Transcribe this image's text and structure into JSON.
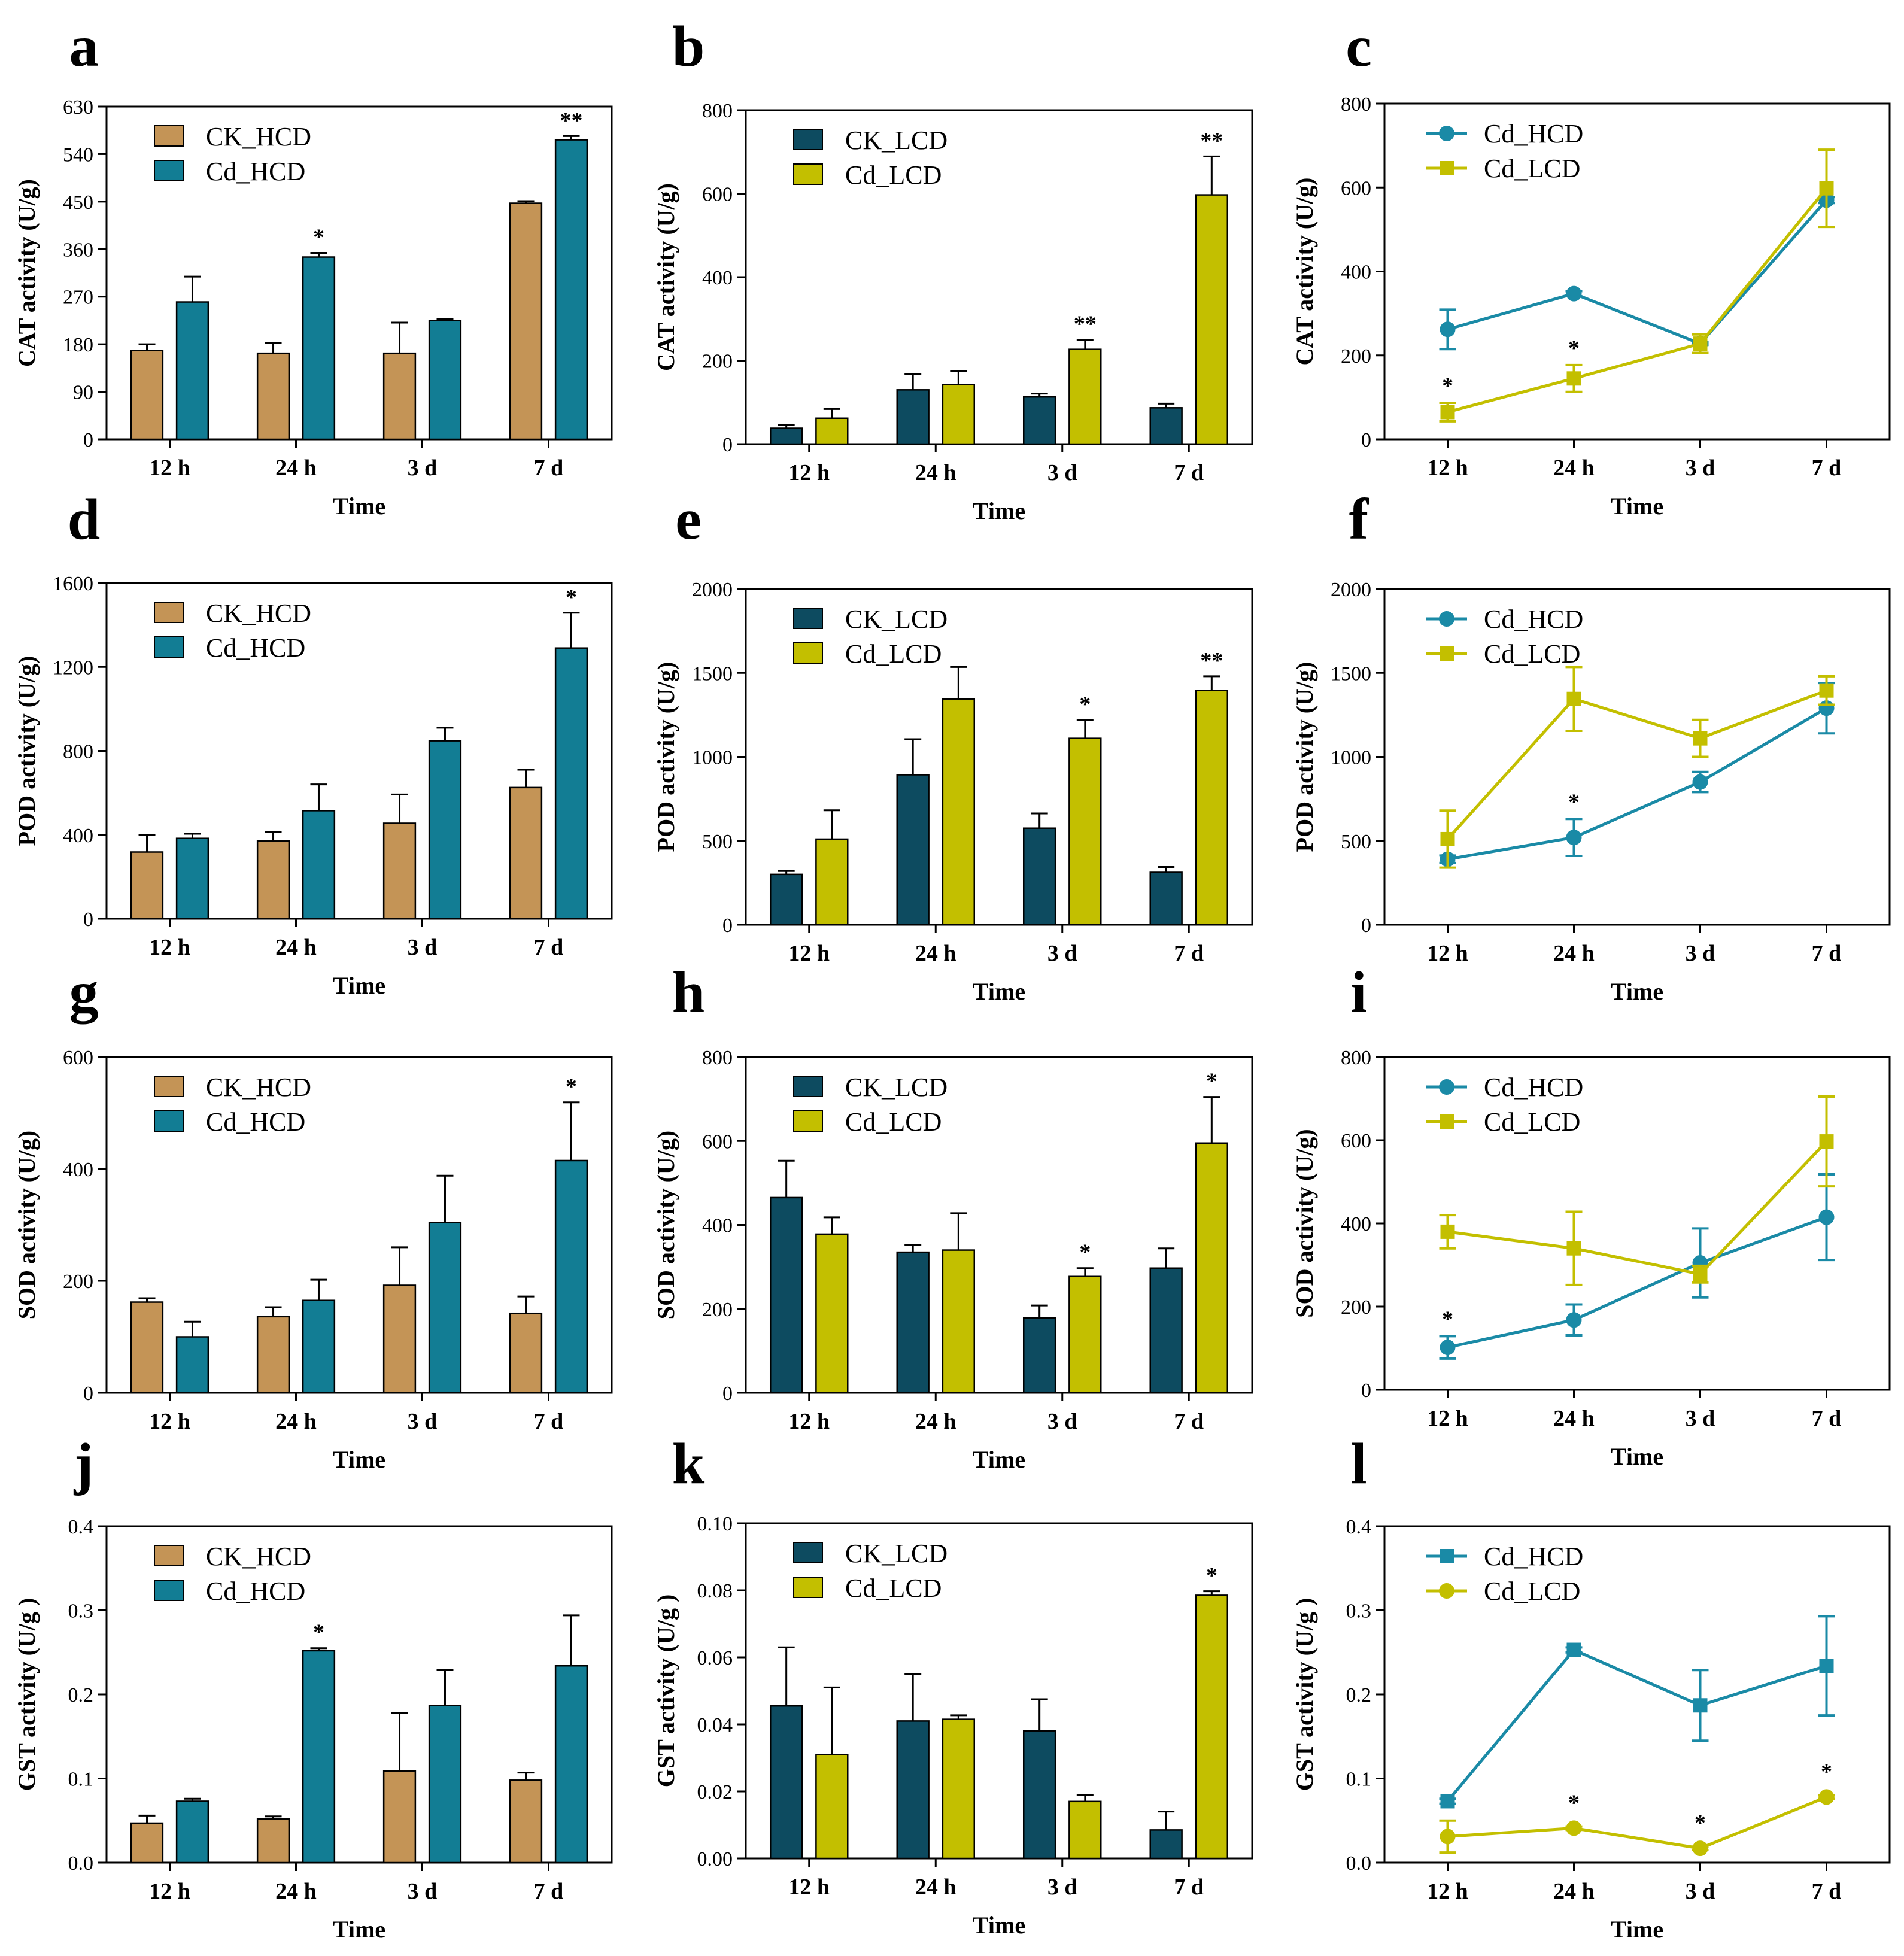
{
  "chart_data": [
    {
      "panel": "a",
      "type": "bar",
      "categories": [
        "12 h",
        "24 h",
        "3 d",
        "7 d"
      ],
      "xlabel": "Time",
      "ylabel": "CAT activity  (U/g)",
      "ylim": [
        0,
        630
      ],
      "yticks": [
        "0",
        "90",
        "180",
        "270",
        "360",
        "450",
        "540",
        "630"
      ],
      "legend": "top-left",
      "series": [
        {
          "name": "CK_HCD",
          "color": "#c49456",
          "values": [
            168,
            163,
            163,
            447
          ],
          "errors": [
            12,
            20,
            58,
            4
          ]
        },
        {
          "name": "Cd_HCD",
          "color": "#127d94",
          "values": [
            260,
            345,
            225,
            567
          ],
          "errors": [
            48,
            8,
            3,
            7
          ]
        }
      ],
      "annotations": [
        {
          "series": 1,
          "index": 1,
          "text": "*"
        },
        {
          "series": 1,
          "index": 3,
          "text": "**"
        }
      ]
    },
    {
      "panel": "b",
      "type": "bar",
      "categories": [
        "12 h",
        "24 h",
        "3 d",
        "7 d"
      ],
      "xlabel": "Time",
      "ylabel": "CAT activity  (U/g)",
      "ylim": [
        0,
        800
      ],
      "yticks": [
        "0",
        "200",
        "400",
        "600",
        "800"
      ],
      "legend": "top-left",
      "series": [
        {
          "name": "CK_LCD",
          "color": "#0d4b60",
          "values": [
            38,
            130,
            113,
            87
          ],
          "errors": [
            8,
            38,
            8,
            10
          ]
        },
        {
          "name": "Cd_LCD",
          "color": "#c3bf00",
          "values": [
            62,
            143,
            227,
            597
          ],
          "errors": [
            22,
            32,
            23,
            92
          ]
        }
      ],
      "annotations": [
        {
          "series": 1,
          "index": 2,
          "text": "**"
        },
        {
          "series": 1,
          "index": 3,
          "text": "**"
        }
      ]
    },
    {
      "panel": "c",
      "type": "line",
      "categories": [
        "12 h",
        "24 h",
        "3 d",
        "7 d"
      ],
      "xlabel": "Time",
      "ylabel": "CAT activity  (U/g)",
      "ylim": [
        0,
        800
      ],
      "yticks": [
        "0",
        "200",
        "400",
        "600",
        "800"
      ],
      "legend": "top-left",
      "series": [
        {
          "name": "Cd_HCD",
          "color": "#1a8aa6",
          "marker": "circle",
          "values": [
            262,
            347,
            228,
            570
          ],
          "errors": [
            47,
            6,
            3,
            7
          ]
        },
        {
          "name": "Cd_LCD",
          "color": "#c3bf00",
          "marker": "square",
          "values": [
            65,
            145,
            228,
            598
          ],
          "errors": [
            22,
            32,
            22,
            92
          ]
        }
      ],
      "annotations": [
        {
          "series": 1,
          "index": 0,
          "text": "*"
        },
        {
          "series": 1,
          "index": 1,
          "text": "*"
        }
      ]
    },
    {
      "panel": "d",
      "type": "bar",
      "categories": [
        "12 h",
        "24 h",
        "3 d",
        "7 d"
      ],
      "xlabel": "Time",
      "ylabel": "POD activity  (U/g)",
      "ylim": [
        0,
        1600
      ],
      "yticks": [
        "0",
        "400",
        "800",
        "1200",
        "1600"
      ],
      "legend": "top-left",
      "series": [
        {
          "name": "CK_HCD",
          "color": "#c49456",
          "values": [
            318,
            370,
            455,
            625
          ],
          "errors": [
            80,
            45,
            137,
            85
          ]
        },
        {
          "name": "Cd_HCD",
          "color": "#127d94",
          "values": [
            383,
            515,
            848,
            1290
          ],
          "errors": [
            22,
            125,
            62,
            168
          ]
        }
      ],
      "annotations": [
        {
          "series": 1,
          "index": 3,
          "text": "*"
        }
      ]
    },
    {
      "panel": "e",
      "type": "bar",
      "categories": [
        "12 h",
        "24 h",
        "3 d",
        "7 d"
      ],
      "xlabel": "Time",
      "ylabel": "POD activity  (U/g)",
      "ylim": [
        0,
        2000
      ],
      "yticks": [
        "0",
        "500",
        "1000",
        "1500",
        "2000"
      ],
      "legend": "top-left",
      "series": [
        {
          "name": "CK_LCD",
          "color": "#0d4b60",
          "values": [
            300,
            893,
            575,
            312
          ],
          "errors": [
            20,
            212,
            88,
            32
          ]
        },
        {
          "name": "Cd_LCD",
          "color": "#c3bf00",
          "values": [
            510,
            1345,
            1110,
            1395
          ],
          "errors": [
            172,
            190,
            110,
            85
          ]
        }
      ],
      "annotations": [
        {
          "series": 1,
          "index": 2,
          "text": "*"
        },
        {
          "series": 1,
          "index": 3,
          "text": "**"
        }
      ]
    },
    {
      "panel": "f",
      "type": "line",
      "categories": [
        "12 h",
        "24 h",
        "3 d",
        "7 d"
      ],
      "xlabel": "Time",
      "ylabel": "POD activity  (U/g)",
      "ylim": [
        0,
        2000
      ],
      "yticks": [
        "0",
        "500",
        "1000",
        "1500",
        "2000"
      ],
      "legend": "top-left",
      "series": [
        {
          "name": "Cd_HCD",
          "color": "#1a8aa6",
          "marker": "circle",
          "values": [
            390,
            520,
            850,
            1290
          ],
          "errors": [
            22,
            110,
            60,
            150
          ]
        },
        {
          "name": "Cd_LCD",
          "color": "#c3bf00",
          "marker": "square",
          "values": [
            510,
            1345,
            1110,
            1395
          ],
          "errors": [
            170,
            190,
            110,
            85
          ]
        }
      ],
      "annotations": [
        {
          "series": 0,
          "index": 1,
          "text": "*"
        }
      ]
    },
    {
      "panel": "g",
      "type": "bar",
      "categories": [
        "12 h",
        "24 h",
        "3 d",
        "7 d"
      ],
      "xlabel": "Time",
      "ylabel": "SOD activity  (U/g)",
      "ylim": [
        0,
        600
      ],
      "yticks": [
        "0",
        "200",
        "400",
        "600"
      ],
      "legend": "top-left",
      "series": [
        {
          "name": "CK_HCD",
          "color": "#c49456",
          "values": [
            162,
            136,
            192,
            142
          ],
          "errors": [
            7,
            17,
            68,
            30
          ]
        },
        {
          "name": "Cd_HCD",
          "color": "#127d94",
          "values": [
            100,
            165,
            304,
            415
          ],
          "errors": [
            27,
            37,
            84,
            104
          ]
        }
      ],
      "annotations": [
        {
          "series": 1,
          "index": 3,
          "text": "*"
        }
      ]
    },
    {
      "panel": "h",
      "type": "bar",
      "categories": [
        "12 h",
        "24 h",
        "3 d",
        "7 d"
      ],
      "xlabel": "Time",
      "ylabel": "SOD activity  (U/g)",
      "ylim": [
        0,
        800
      ],
      "yticks": [
        "0",
        "200",
        "400",
        "600",
        "800"
      ],
      "legend": "top-left",
      "series": [
        {
          "name": "CK_LCD",
          "color": "#0d4b60",
          "values": [
            465,
            335,
            178,
            297
          ],
          "errors": [
            88,
            17,
            30,
            47
          ]
        },
        {
          "name": "Cd_LCD",
          "color": "#c3bf00",
          "values": [
            378,
            340,
            277,
            595
          ],
          "errors": [
            40,
            88,
            20,
            110
          ]
        }
      ],
      "annotations": [
        {
          "series": 1,
          "index": 2,
          "text": "*"
        },
        {
          "series": 1,
          "index": 3,
          "text": "*"
        }
      ]
    },
    {
      "panel": "i",
      "type": "line",
      "categories": [
        "12 h",
        "24 h",
        "3 d",
        "7 d"
      ],
      "xlabel": "Time",
      "ylabel": "SOD activity  (U/g)",
      "ylim": [
        0,
        800
      ],
      "yticks": [
        "0",
        "200",
        "400",
        "600",
        "800"
      ],
      "legend": "top-left",
      "series": [
        {
          "name": "Cd_HCD",
          "color": "#1a8aa6",
          "marker": "circle",
          "values": [
            102,
            168,
            305,
            415
          ],
          "errors": [
            27,
            37,
            83,
            103
          ]
        },
        {
          "name": "Cd_LCD",
          "color": "#c3bf00",
          "marker": "square",
          "values": [
            380,
            340,
            278,
            597
          ],
          "errors": [
            40,
            88,
            20,
            108
          ]
        }
      ],
      "annotations": [
        {
          "series": 0,
          "index": 0,
          "text": "*"
        }
      ]
    },
    {
      "panel": "j",
      "type": "bar",
      "categories": [
        "12 h",
        "24 h",
        "3 d",
        "7 d"
      ],
      "xlabel": "Time",
      "ylabel": "GST activity  (U/g )",
      "ylim": [
        0,
        0.4
      ],
      "yticks": [
        "0.0",
        "0.1",
        "0.2",
        "0.3",
        "0.4"
      ],
      "legend": "top-left",
      "series": [
        {
          "name": "CK_HCD",
          "color": "#c49456",
          "values": [
            0.047,
            0.052,
            0.109,
            0.098
          ],
          "errors": [
            0.009,
            0.003,
            0.069,
            0.009
          ]
        },
        {
          "name": "Cd_HCD",
          "color": "#127d94",
          "values": [
            0.073,
            0.252,
            0.187,
            0.234
          ],
          "errors": [
            0.003,
            0.003,
            0.042,
            0.06
          ]
        }
      ],
      "annotations": [
        {
          "series": 1,
          "index": 1,
          "text": "*"
        }
      ]
    },
    {
      "panel": "k",
      "type": "bar",
      "categories": [
        "12 h",
        "24 h",
        "3 d",
        "7 d"
      ],
      "xlabel": "Time",
      "ylabel": "GST activity (U/g )",
      "ylim": [
        0,
        0.1
      ],
      "yticks": [
        "0.00",
        "0.02",
        "0.04",
        "0.06",
        "0.08",
        "0.10"
      ],
      "legend": "top-left",
      "series": [
        {
          "name": "CK_LCD",
          "color": "#0d4b60",
          "values": [
            0.0455,
            0.041,
            0.038,
            0.0085
          ],
          "errors": [
            0.0175,
            0.014,
            0.0095,
            0.0055
          ]
        },
        {
          "name": "Cd_LCD",
          "color": "#c3bf00",
          "values": [
            0.031,
            0.0415,
            0.017,
            0.0785
          ],
          "errors": [
            0.02,
            0.0012,
            0.002,
            0.0012
          ]
        }
      ],
      "annotations": [
        {
          "series": 1,
          "index": 3,
          "text": "*"
        }
      ]
    },
    {
      "panel": "l",
      "type": "line",
      "categories": [
        "12 h",
        "24 h",
        "3 d",
        "7 d"
      ],
      "xlabel": "Time",
      "ylabel": "GST activity  (U/g )",
      "ylim": [
        0,
        0.4
      ],
      "yticks": [
        "0.0",
        "0.1",
        "0.2",
        "0.3",
        "0.4"
      ],
      "legend": "top-left",
      "series": [
        {
          "name": "Cd_HCD",
          "color": "#1a8aa6",
          "marker": "square",
          "values": [
            0.073,
            0.253,
            0.187,
            0.234
          ],
          "errors": [
            0.003,
            0.003,
            0.042,
            0.059
          ]
        },
        {
          "name": "Cd_LCD",
          "color": "#c3bf00",
          "marker": "circle",
          "values": [
            0.031,
            0.041,
            0.017,
            0.078
          ],
          "errors": [
            0.019,
            0.002,
            0.002,
            0.002
          ]
        }
      ],
      "annotations": [
        {
          "series": 1,
          "index": 1,
          "text": "*"
        },
        {
          "series": 1,
          "index": 2,
          "text": "*"
        },
        {
          "series": 1,
          "index": 3,
          "text": "*"
        }
      ]
    }
  ]
}
